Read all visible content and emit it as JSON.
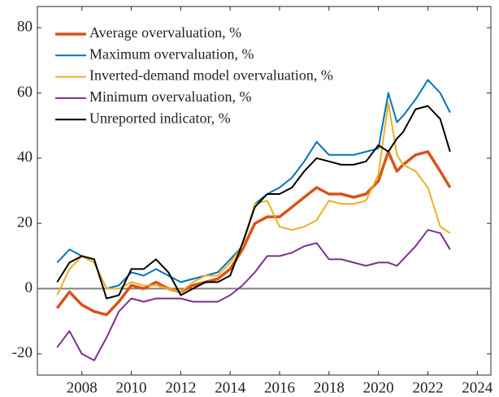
{
  "chart_data": {
    "type": "line",
    "x": [
      2007,
      2007.5,
      2008,
      2008.5,
      2009,
      2009.5,
      2010,
      2010.5,
      2011,
      2011.5,
      2012,
      2012.5,
      2013,
      2013.5,
      2014,
      2014.5,
      2015,
      2015.5,
      2016,
      2016.5,
      2017,
      2017.5,
      2018,
      2018.5,
      2019,
      2019.5,
      2020,
      2020.4,
      2020.75,
      2021,
      2021.5,
      2022,
      2022.5,
      2022.9
    ],
    "series": [
      {
        "name": "Average overvaluation, %",
        "color": "#d95319",
        "values": [
          -6,
          -1,
          -5,
          -7,
          -8,
          -4,
          1,
          0,
          2,
          0,
          -1,
          1,
          2,
          3,
          6,
          12,
          20,
          22,
          22,
          25,
          28,
          31,
          29,
          29,
          28,
          29,
          33,
          42,
          36,
          38,
          41,
          42,
          36,
          31
        ]
      },
      {
        "name": "Maximum overvaluation, %",
        "color": "#0072bd",
        "values": [
          8,
          12,
          10,
          8,
          0,
          1,
          5,
          4,
          6,
          4,
          2,
          3,
          4,
          5,
          9,
          13,
          26,
          29,
          31,
          34,
          39,
          45,
          41,
          41,
          41,
          42,
          43,
          60,
          51,
          53,
          58,
          64,
          60,
          54
        ]
      },
      {
        "name": "Inverted-demand model overvaluation, %",
        "color": "#edb120",
        "values": [
          -2,
          6,
          10,
          8,
          0,
          0,
          2,
          1,
          1,
          0,
          -1,
          2,
          4,
          4,
          8,
          13,
          26,
          27,
          19,
          18,
          19,
          21,
          27,
          26,
          26,
          27,
          35,
          57,
          41,
          38,
          36,
          31,
          19,
          17
        ]
      },
      {
        "name": "Minimum overvaluation, %",
        "color": "#7e2f8e",
        "values": [
          -18,
          -13,
          -20,
          -22,
          -15,
          -7,
          -3,
          -4,
          -3,
          -3,
          -3,
          -4,
          -4,
          -4,
          -2,
          1,
          5,
          10,
          10,
          11,
          13,
          14,
          9,
          9,
          8,
          7,
          8,
          8,
          7,
          9,
          13,
          18,
          17,
          12
        ]
      },
      {
        "name": "Unreported indicator, %",
        "color": "#000000",
        "values": [
          2,
          8,
          10,
          9,
          -3,
          -2,
          6,
          6,
          9,
          5,
          -2,
          0,
          2,
          2,
          4,
          14,
          25,
          29,
          29,
          31,
          36,
          40,
          39,
          38,
          38,
          39,
          44,
          42,
          46,
          48,
          55,
          56,
          52,
          42
        ]
      }
    ],
    "xlim": [
      2006.2,
      2024.55
    ],
    "xticks": [
      2008,
      2010,
      2012,
      2014,
      2016,
      2018,
      2020,
      2022,
      2024
    ],
    "ylim": [
      -26.5,
      86.5
    ],
    "yticks": [
      -20,
      0,
      20,
      40,
      60,
      80
    ],
    "hline": 0,
    "legend": "upper left"
  }
}
